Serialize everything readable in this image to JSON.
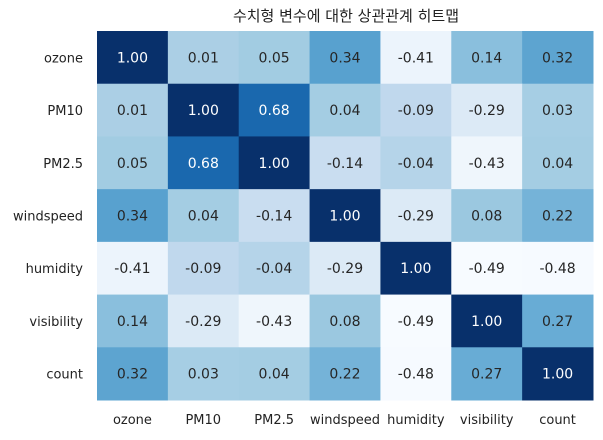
{
  "chart_data": {
    "type": "heatmap",
    "title": "수치형 변수에 대한 상관관계 히트맵",
    "xlabel": "",
    "ylabel": "",
    "x_categories": [
      "ozone",
      "PM10",
      "PM2.5",
      "windspeed",
      "humidity",
      "visibility",
      "count"
    ],
    "y_categories": [
      "ozone",
      "PM10",
      "PM2.5",
      "windspeed",
      "humidity",
      "visibility",
      "count"
    ],
    "values": [
      [
        1.0,
        0.01,
        0.05,
        0.34,
        -0.41,
        0.14,
        0.32
      ],
      [
        0.01,
        1.0,
        0.68,
        0.04,
        -0.09,
        -0.29,
        0.03
      ],
      [
        0.05,
        0.68,
        1.0,
        -0.14,
        -0.04,
        -0.43,
        0.04
      ],
      [
        0.34,
        0.04,
        -0.14,
        1.0,
        -0.29,
        0.08,
        0.22
      ],
      [
        -0.41,
        -0.09,
        -0.04,
        -0.29,
        1.0,
        -0.49,
        -0.48
      ],
      [
        0.14,
        -0.29,
        -0.43,
        0.08,
        -0.49,
        1.0,
        0.27
      ],
      [
        0.32,
        0.03,
        0.04,
        0.22,
        -0.48,
        0.27,
        1.0
      ]
    ],
    "value_format": "2 decimals",
    "colormap": "Blues",
    "color_range": [
      -0.49,
      1.0
    ],
    "colorbar": false,
    "grid": false,
    "legend": "none"
  }
}
